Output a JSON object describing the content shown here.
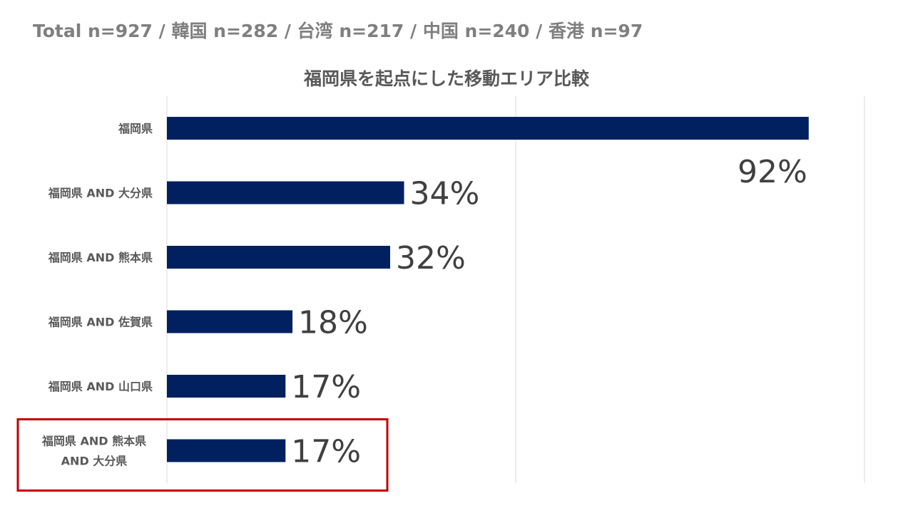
{
  "header": {
    "sample_sizes": "Total n=927 / 韓国 n=282 / 台湾 n=217 / 中国  n=240 / 香港 n=97"
  },
  "chart_data": {
    "type": "bar",
    "orientation": "horizontal",
    "title": "福岡県を起点にした移動エリア比較",
    "categories": [
      [
        "福岡県"
      ],
      [
        "福岡県 AND 大分県"
      ],
      [
        "福岡県 AND 熊本県"
      ],
      [
        "福岡県 AND 佐賀県"
      ],
      [
        "福岡県 AND 山口県"
      ],
      [
        "福岡県 AND 熊本県",
        "AND 大分県"
      ]
    ],
    "values": [
      92,
      34,
      32,
      18,
      17,
      17
    ],
    "data_labels": [
      "92%",
      "34%",
      "32%",
      "18%",
      "17%",
      "17%"
    ],
    "xlim": [
      0,
      100
    ],
    "xlabel": "",
    "ylabel": "",
    "unit": "%",
    "grid": true,
    "bar_color": "#002060",
    "highlight_color": "#c00000",
    "highlighted_category_index": 5
  }
}
